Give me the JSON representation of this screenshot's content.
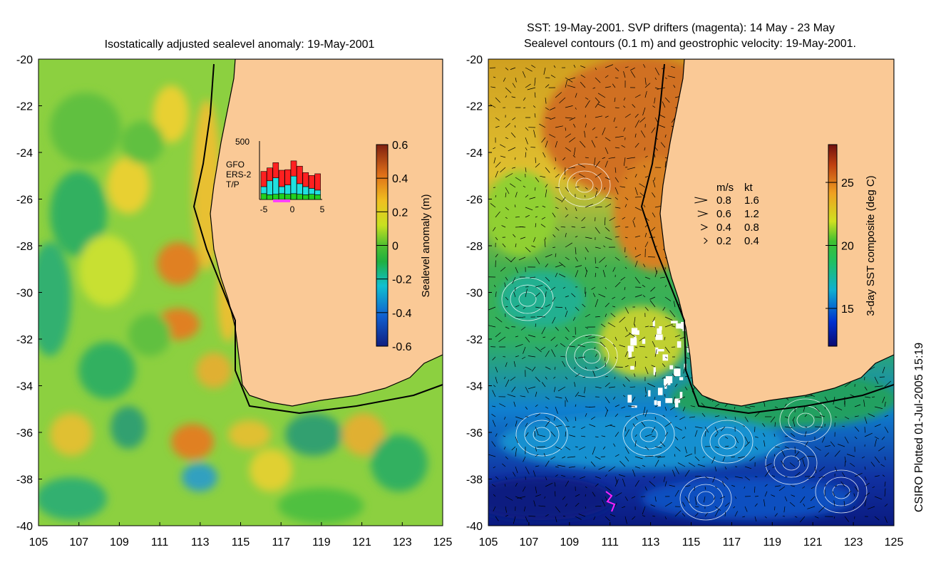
{
  "left_panel": {
    "title": "Isostatically adjusted sealevel anomaly: 19-May-2001",
    "colorbar_label": "Sealevel anomaly (m)",
    "colorbar_ticks": [
      "0.6",
      "0.4",
      "0.2",
      "0",
      "-0.2",
      "-0.4",
      "-0.6"
    ],
    "inset": {
      "ymax_label": "500",
      "legend": [
        {
          "name": "GFO",
          "color": "#ff2020"
        },
        {
          "name": "ERS-2",
          "color": "#20e0e0"
        },
        {
          "name": "T/P",
          "color": "#20d020"
        }
      ],
      "xticks": [
        "-5",
        "0",
        "5"
      ]
    }
  },
  "right_panel": {
    "title_line1": "SST: 19-May-2001. SVP drifters (magenta): 14 May - 23 May",
    "title_line2": "Sealevel contours (0.1 m) and geostrophic velocity: 19-May-2001.",
    "colorbar_label": "3-day SST composite (deg C)",
    "colorbar_ticks": [
      "25",
      "20",
      "15"
    ],
    "velocity_key": {
      "header_ms": "m/s",
      "header_kt": "kt",
      "rows": [
        {
          "ms": "0.8",
          "kt": "1.6"
        },
        {
          "ms": "0.6",
          "kt": "1.2"
        },
        {
          "ms": "0.4",
          "kt": "0.8"
        },
        {
          "ms": "0.2",
          "kt": "0.4"
        }
      ]
    }
  },
  "credit": "CSIRO Plotted 01-Jul-2005 15:19",
  "chart_data": [
    {
      "type": "heatmap",
      "title": "Isostatically adjusted sealevel anomaly: 19-May-2001",
      "xlabel": "",
      "ylabel": "",
      "xlim": [
        105,
        125
      ],
      "ylim": [
        -40,
        -20
      ],
      "xticks": [
        105,
        107,
        109,
        111,
        113,
        115,
        117,
        119,
        121,
        123,
        125
      ],
      "yticks": [
        -20,
        -22,
        -24,
        -26,
        -28,
        -30,
        -32,
        -34,
        -36,
        -38,
        -40
      ],
      "colorbar": {
        "label": "Sealevel anomaly (m)",
        "range": [
          -0.6,
          0.6
        ]
      },
      "inset_histogram": {
        "categories": [
          -5,
          -4,
          -3,
          -2,
          -1,
          0,
          1,
          2,
          3,
          4
        ],
        "series": [
          {
            "name": "T/P",
            "values": [
              50,
              40,
              45,
              50,
              45,
              50,
              45,
              40,
              45,
              40
            ]
          },
          {
            "name": "ERS-2",
            "values": [
              60,
              120,
              140,
              60,
              80,
              150,
              90,
              70,
              50,
              40
            ]
          },
          {
            "name": "GFO",
            "values": [
              130,
              110,
              130,
              140,
              130,
              130,
              150,
              120,
              110,
              140
            ]
          }
        ],
        "ylim": [
          0,
          500
        ]
      }
    },
    {
      "type": "heatmap",
      "title": "SST: 19-May-2001. SVP drifters (magenta): 14 May - 23 May",
      "xlabel": "",
      "ylabel": "",
      "xlim": [
        105,
        125
      ],
      "ylim": [
        -40,
        -20
      ],
      "xticks": [
        105,
        107,
        109,
        111,
        113,
        115,
        117,
        119,
        121,
        123,
        125
      ],
      "yticks": [
        -20,
        -22,
        -24,
        -26,
        -28,
        -30,
        -32,
        -34,
        -36,
        -38,
        -40
      ],
      "colorbar": {
        "label": "3-day SST composite (deg C)",
        "range": [
          12,
          28
        ]
      }
    }
  ]
}
